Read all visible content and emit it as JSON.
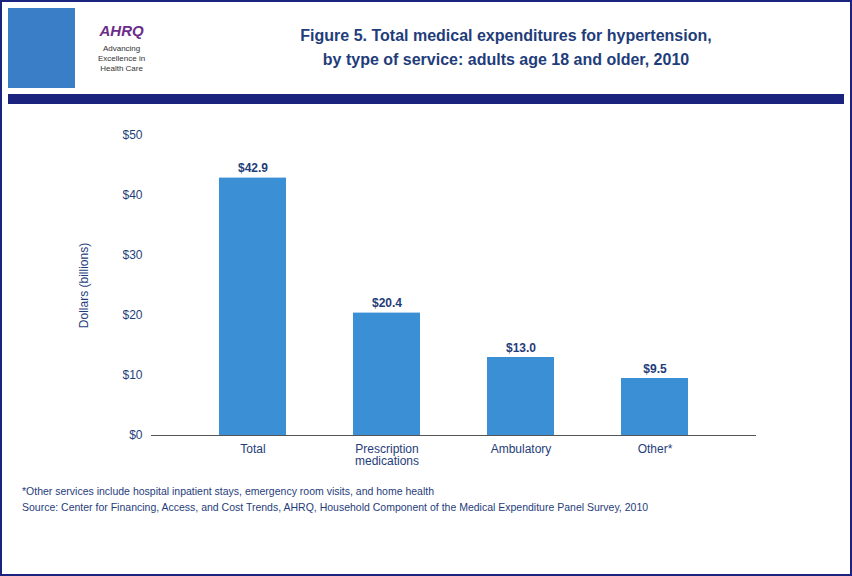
{
  "chart_data": {
    "type": "bar",
    "title": "Figure 5.  Total medical expenditures for hypertension,",
    "subtitle": "by type of service: adults age 18 and older, 2010",
    "categories": [
      "Total",
      "Prescription\nmedications",
      "Ambulatory",
      "Other*"
    ],
    "values": [
      42.9,
      20.4,
      13.0,
      9.5
    ],
    "value_labels": [
      "$42.9",
      "$20.4",
      "$13.0",
      "$9.5"
    ],
    "data_labels": true,
    "color": "#3B8FD4",
    "ylabel": "Dollars (billions)",
    "ylim": [
      0,
      50
    ],
    "yticks": [
      {
        "value": 0,
        "label": "$0"
      },
      {
        "value": 10,
        "label": "$10"
      },
      {
        "value": 20,
        "label": "$20"
      },
      {
        "value": 30,
        "label": "$30"
      },
      {
        "value": 40,
        "label": "$40"
      },
      {
        "value": 50,
        "label": "$50"
      }
    ],
    "grid": false,
    "annotations": [
      "AHRQ",
      "Advancing",
      "Excellence in",
      "Health Care",
      "*Other services include hospital inpatient stays, emergency room visits, and home health",
      "Source: Center for Financing, Access, and Cost Trends, AHRQ, Household Component of the Medical Expenditure Panel Survey,  2010"
    ]
  }
}
